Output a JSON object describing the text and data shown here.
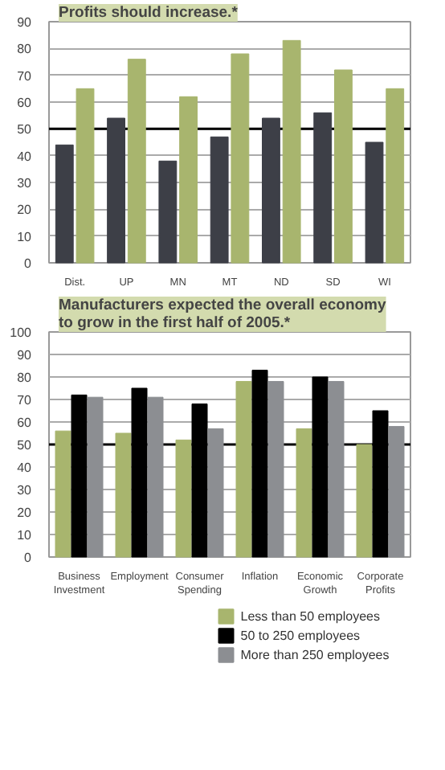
{
  "chart_data": [
    {
      "type": "bar",
      "title": "Profits should increase.*",
      "categories": [
        "Dist.",
        "UP",
        "MN",
        "MT",
        "ND",
        "SD",
        "WI"
      ],
      "series": [
        {
          "color": "#3d3f47",
          "values": [
            44,
            54,
            38,
            47,
            54,
            56,
            45
          ]
        },
        {
          "color": "#a8b56e",
          "values": [
            65,
            76,
            62,
            78,
            83,
            72,
            65
          ]
        }
      ],
      "ylim": [
        0,
        90
      ],
      "yticks": [
        0,
        10,
        20,
        30,
        40,
        50,
        60,
        70,
        80,
        90
      ],
      "grid": "y",
      "ref_lines": [
        {
          "axis": "y",
          "value": 50,
          "color": "#000000"
        }
      ]
    },
    {
      "type": "bar",
      "title": "Manufacturers expected the overall economy to grow in the first half of 2005.*",
      "categories": [
        "Business Investment",
        "Employment",
        "Consumer Spending",
        "Inflation",
        "Economic Growth",
        "Corporate Profits"
      ],
      "series": [
        {
          "name": "Less than 50 employees",
          "color": "#a8b56e",
          "values": [
            56,
            55,
            52,
            78,
            57,
            50
          ]
        },
        {
          "name": "50 to 250 employees",
          "color": "#000000",
          "values": [
            72,
            75,
            68,
            83,
            80,
            65
          ]
        },
        {
          "name": "More than 250 employees",
          "color": "#8c8e92",
          "values": [
            71,
            71,
            57,
            78,
            78,
            58
          ]
        }
      ],
      "ylim": [
        0,
        100
      ],
      "yticks": [
        0,
        10,
        20,
        30,
        40,
        50,
        60,
        70,
        80,
        90,
        100
      ],
      "grid": "y",
      "legend": "bottom right",
      "ref_lines": [
        {
          "axis": "y",
          "value": 50,
          "color": "#000000"
        }
      ]
    }
  ]
}
